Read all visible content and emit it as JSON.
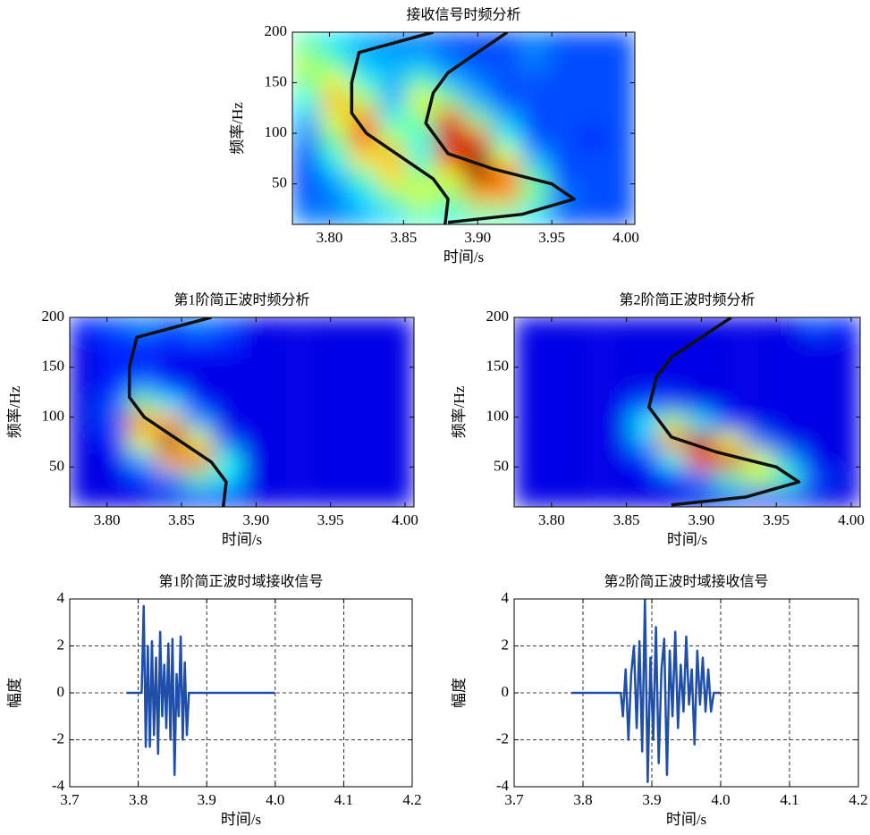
{
  "chart_data": [
    {
      "type": "heatmap",
      "title": "接收信号时频分析",
      "xlabel": "时间/s",
      "ylabel": "频率/Hz",
      "xlim": [
        3.775,
        4.006
      ],
      "ylim": [
        10,
        200
      ],
      "xticks": [
        {
          "value": 3.8,
          "label": "3.80"
        },
        {
          "value": 3.85,
          "label": "3.85"
        },
        {
          "value": 3.9,
          "label": "3.90"
        },
        {
          "value": 3.95,
          "label": "3.95"
        },
        {
          "value": 4.0,
          "label": "4.00"
        }
      ],
      "yticks": [
        50,
        100,
        150,
        200
      ],
      "x": [
        3.785,
        3.804,
        3.823,
        3.843,
        3.862,
        3.881,
        3.9,
        3.919,
        3.939,
        3.958,
        3.977,
        3.996
      ],
      "y": [
        19.5,
        38.5,
        57.5,
        76.5,
        95.5,
        114.5,
        133.5,
        152.5,
        171.5,
        190.5
      ],
      "z": [
        [
          0.25,
          0.25,
          0.3,
          0.35,
          0.45,
          0.4,
          0.45,
          0.45,
          0.35,
          0.2,
          0.2,
          0.2
        ],
        [
          0.2,
          0.25,
          0.35,
          0.5,
          0.6,
          0.5,
          0.7,
          0.7,
          0.5,
          0.25,
          0.2,
          0.2
        ],
        [
          0.2,
          0.3,
          0.45,
          0.65,
          0.5,
          0.6,
          0.95,
          0.85,
          0.45,
          0.2,
          0.2,
          0.2
        ],
        [
          0.2,
          0.4,
          0.65,
          0.7,
          0.4,
          0.85,
          1.0,
          0.6,
          0.3,
          0.2,
          0.2,
          0.2
        ],
        [
          0.25,
          0.5,
          0.8,
          0.55,
          0.4,
          0.95,
          0.8,
          0.4,
          0.2,
          0.2,
          0.15,
          0.2
        ],
        [
          0.3,
          0.6,
          0.75,
          0.4,
          0.5,
          0.85,
          0.5,
          0.3,
          0.2,
          0.2,
          0.2,
          0.2
        ],
        [
          0.4,
          0.7,
          0.55,
          0.3,
          0.6,
          0.5,
          0.3,
          0.2,
          0.2,
          0.2,
          0.2,
          0.2
        ],
        [
          0.5,
          0.6,
          0.4,
          0.3,
          0.45,
          0.3,
          0.25,
          0.2,
          0.2,
          0.2,
          0.2,
          0.2
        ],
        [
          0.55,
          0.45,
          0.3,
          0.3,
          0.3,
          0.25,
          0.2,
          0.2,
          0.25,
          0.2,
          0.2,
          0.2
        ],
        [
          0.45,
          0.35,
          0.3,
          0.25,
          0.25,
          0.2,
          0.2,
          0.2,
          0.25,
          0.2,
          0.2,
          0.2
        ]
      ],
      "lines": [
        {
          "color": "#111111",
          "x": [
            3.87,
            3.82,
            3.815,
            3.815,
            3.825,
            3.845,
            3.87,
            3.88,
            3.878
          ],
          "y": [
            200,
            180,
            150,
            120,
            100,
            80,
            55,
            35,
            10
          ]
        },
        {
          "color": "#111111",
          "x": [
            3.92,
            3.9,
            3.88,
            3.87,
            3.865,
            3.88,
            3.91,
            3.95,
            3.965,
            3.93,
            3.88
          ],
          "y": [
            200,
            180,
            160,
            140,
            110,
            80,
            65,
            50,
            35,
            20,
            12
          ]
        }
      ]
    },
    {
      "type": "heatmap",
      "title": "第1阶简正波时频分析",
      "xlabel": "时间/s",
      "ylabel": "频率/Hz",
      "xlim": [
        3.775,
        4.006
      ],
      "ylim": [
        10,
        200
      ],
      "xticks": [
        {
          "value": 3.8,
          "label": "3.80"
        },
        {
          "value": 3.85,
          "label": "3.85"
        },
        {
          "value": 3.9,
          "label": "3.90"
        },
        {
          "value": 3.95,
          "label": "3.95"
        },
        {
          "value": 4.0,
          "label": "4.00"
        }
      ],
      "yticks": [
        50,
        100,
        150,
        200
      ],
      "x": [
        3.785,
        3.804,
        3.823,
        3.843,
        3.862,
        3.881,
        3.9,
        3.919,
        3.939,
        3.958,
        3.977,
        3.996
      ],
      "y": [
        19.5,
        38.5,
        57.5,
        76.5,
        95.5,
        114.5,
        133.5,
        152.5,
        171.5,
        190.5
      ],
      "z": [
        [
          0.1,
          0.1,
          0.1,
          0.1,
          0.15,
          0.15,
          0.1,
          0.1,
          0.1,
          0.1,
          0.1,
          0.1
        ],
        [
          0.1,
          0.1,
          0.15,
          0.25,
          0.45,
          0.35,
          0.1,
          0.1,
          0.1,
          0.1,
          0.1,
          0.1
        ],
        [
          0.1,
          0.1,
          0.3,
          0.7,
          0.8,
          0.4,
          0.1,
          0.1,
          0.1,
          0.1,
          0.1,
          0.1
        ],
        [
          0.1,
          0.15,
          0.6,
          0.95,
          0.6,
          0.2,
          0.1,
          0.1,
          0.1,
          0.1,
          0.1,
          0.1
        ],
        [
          0.1,
          0.2,
          0.75,
          0.7,
          0.3,
          0.1,
          0.1,
          0.1,
          0.1,
          0.1,
          0.1,
          0.1
        ],
        [
          0.1,
          0.2,
          0.5,
          0.35,
          0.15,
          0.1,
          0.1,
          0.1,
          0.1,
          0.1,
          0.1,
          0.1
        ],
        [
          0.1,
          0.15,
          0.25,
          0.15,
          0.1,
          0.1,
          0.1,
          0.1,
          0.1,
          0.1,
          0.1,
          0.1
        ],
        [
          0.1,
          0.15,
          0.15,
          0.1,
          0.1,
          0.1,
          0.1,
          0.1,
          0.1,
          0.1,
          0.1,
          0.1
        ],
        [
          0.1,
          0.15,
          0.15,
          0.15,
          0.15,
          0.15,
          0.1,
          0.1,
          0.1,
          0.1,
          0.1,
          0.1
        ],
        [
          0.15,
          0.2,
          0.25,
          0.2,
          0.25,
          0.2,
          0.1,
          0.1,
          0.1,
          0.1,
          0.1,
          0.1
        ]
      ],
      "lines": [
        {
          "color": "#111111",
          "x": [
            3.87,
            3.82,
            3.815,
            3.815,
            3.825,
            3.845,
            3.87,
            3.88,
            3.878
          ],
          "y": [
            200,
            180,
            150,
            120,
            100,
            80,
            55,
            35,
            10
          ]
        }
      ]
    },
    {
      "type": "heatmap",
      "title": "第2阶简正波时频分析",
      "xlabel": "时间/s",
      "ylabel": "频率/Hz",
      "xlim": [
        3.775,
        4.006
      ],
      "ylim": [
        10,
        200
      ],
      "xticks": [
        {
          "value": 3.8,
          "label": "3.80"
        },
        {
          "value": 3.85,
          "label": "3.85"
        },
        {
          "value": 3.9,
          "label": "3.90"
        },
        {
          "value": 3.95,
          "label": "3.95"
        },
        {
          "value": 4.0,
          "label": "4.00"
        }
      ],
      "yticks": [
        50,
        100,
        150,
        200
      ],
      "x": [
        3.785,
        3.804,
        3.823,
        3.843,
        3.862,
        3.881,
        3.9,
        3.919,
        3.939,
        3.958,
        3.977,
        3.996
      ],
      "y": [
        19.5,
        38.5,
        57.5,
        76.5,
        95.5,
        114.5,
        133.5,
        152.5,
        171.5,
        190.5
      ],
      "z": [
        [
          0.1,
          0.1,
          0.1,
          0.1,
          0.1,
          0.1,
          0.1,
          0.15,
          0.15,
          0.15,
          0.1,
          0.1
        ],
        [
          0.1,
          0.1,
          0.1,
          0.1,
          0.1,
          0.15,
          0.25,
          0.45,
          0.55,
          0.45,
          0.2,
          0.1
        ],
        [
          0.1,
          0.1,
          0.1,
          0.1,
          0.15,
          0.4,
          0.8,
          0.9,
          0.6,
          0.3,
          0.1,
          0.1
        ],
        [
          0.1,
          0.1,
          0.1,
          0.1,
          0.3,
          0.75,
          0.95,
          0.6,
          0.25,
          0.1,
          0.1,
          0.1
        ],
        [
          0.1,
          0.1,
          0.1,
          0.1,
          0.35,
          0.55,
          0.35,
          0.15,
          0.1,
          0.1,
          0.1,
          0.1
        ],
        [
          0.1,
          0.1,
          0.1,
          0.1,
          0.2,
          0.2,
          0.1,
          0.1,
          0.1,
          0.1,
          0.1,
          0.1
        ],
        [
          0.1,
          0.1,
          0.1,
          0.1,
          0.1,
          0.1,
          0.1,
          0.1,
          0.1,
          0.1,
          0.1,
          0.1
        ],
        [
          0.1,
          0.1,
          0.1,
          0.1,
          0.1,
          0.1,
          0.1,
          0.1,
          0.1,
          0.1,
          0.1,
          0.1
        ],
        [
          0.1,
          0.1,
          0.1,
          0.1,
          0.1,
          0.1,
          0.1,
          0.1,
          0.1,
          0.1,
          0.1,
          0.1
        ],
        [
          0.1,
          0.1,
          0.1,
          0.1,
          0.1,
          0.1,
          0.1,
          0.1,
          0.1,
          0.1,
          0.2,
          0.15
        ]
      ],
      "lines": [
        {
          "color": "#111111",
          "x": [
            3.92,
            3.9,
            3.88,
            3.87,
            3.865,
            3.88,
            3.91,
            3.95,
            3.965,
            3.93,
            3.88
          ],
          "y": [
            200,
            180,
            160,
            140,
            110,
            80,
            65,
            50,
            35,
            20,
            12
          ]
        }
      ]
    },
    {
      "type": "line",
      "title": "第1阶简正波时域接收信号",
      "xlabel": "时间/s",
      "ylabel": "幅度",
      "xlim": [
        3.7,
        4.2
      ],
      "ylim": [
        -4,
        4
      ],
      "grid": true,
      "xticks": [
        3.7,
        3.8,
        3.9,
        {
          "value": 4.0,
          "label": "4.0"
        },
        4.1,
        4.2
      ],
      "yticks": [
        -4,
        -2,
        0,
        2,
        4
      ],
      "series": [
        {
          "color": "#1f4fa8",
          "x": [
            3.783,
            3.805,
            3.808,
            3.811,
            3.814,
            3.817,
            3.82,
            3.823,
            3.826,
            3.829,
            3.832,
            3.835,
            3.838,
            3.841,
            3.844,
            3.847,
            3.85,
            3.853,
            3.856,
            3.859,
            3.862,
            3.865,
            3.868,
            3.871,
            3.874,
            4.0
          ],
          "values": [
            0,
            0,
            3.7,
            -2.3,
            2.0,
            -2.3,
            2.2,
            -1.8,
            1.5,
            -2.6,
            2.6,
            -1.0,
            1.2,
            -1.5,
            2.1,
            -2.0,
            2.3,
            -3.5,
            0.8,
            -1.0,
            2.4,
            -2.0,
            1.3,
            -1.8,
            0,
            0
          ]
        }
      ]
    },
    {
      "type": "line",
      "title": "第2阶简正波时域接收信号",
      "xlabel": "时间/s",
      "ylabel": "幅度",
      "xlim": [
        3.7,
        4.2
      ],
      "ylim": [
        -4,
        4
      ],
      "grid": true,
      "xticks": [
        3.7,
        3.8,
        3.9,
        {
          "value": 4.0,
          "label": "4.0"
        },
        4.1,
        4.2
      ],
      "yticks": [
        -4,
        -2,
        0,
        2,
        4
      ],
      "series": [
        {
          "color": "#1f4fa8",
          "x": [
            3.783,
            3.855,
            3.858,
            3.862,
            3.866,
            3.87,
            3.874,
            3.878,
            3.882,
            3.886,
            3.89,
            3.894,
            3.898,
            3.902,
            3.906,
            3.91,
            3.914,
            3.918,
            3.922,
            3.926,
            3.93,
            3.934,
            3.938,
            3.942,
            3.946,
            3.95,
            3.954,
            3.958,
            3.962,
            3.966,
            3.97,
            3.974,
            3.978,
            3.982,
            3.986,
            3.99,
            4.0
          ],
          "values": [
            0,
            0,
            -1.0,
            1.0,
            -2.0,
            0.8,
            2.0,
            -1.5,
            2.2,
            -2.5,
            4.0,
            -3.8,
            1.5,
            -2.0,
            2.8,
            -3.0,
            1.0,
            2.3,
            -3.5,
            1.8,
            -1.0,
            2.6,
            -1.5,
            1.2,
            -0.8,
            2.4,
            -0.5,
            1.0,
            -2.2,
            1.8,
            -0.5,
            1.5,
            -0.8,
            1.0,
            -0.8,
            0,
            0
          ]
        }
      ]
    }
  ]
}
